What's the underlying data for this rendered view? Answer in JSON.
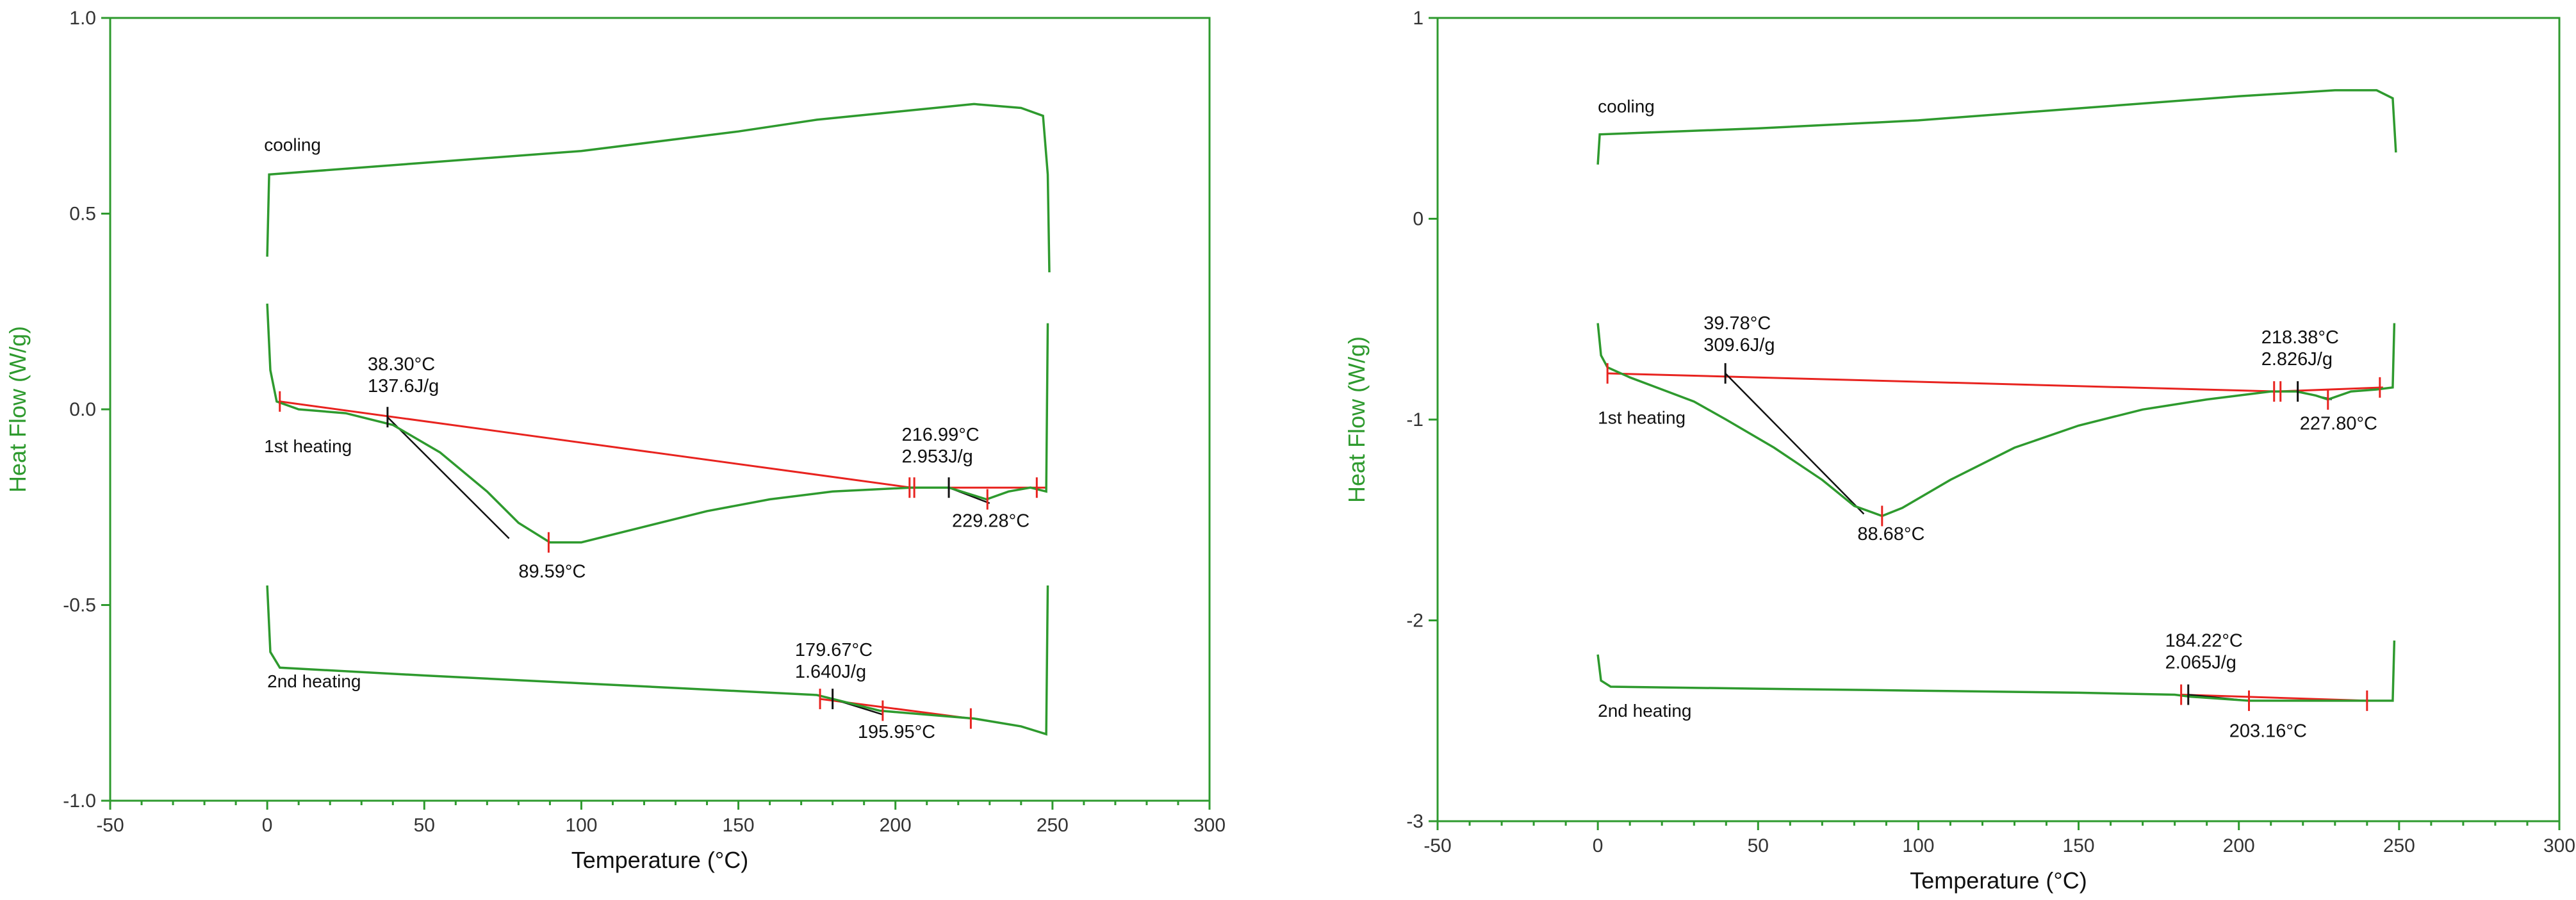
{
  "chart_data": [
    {
      "type": "line",
      "xlabel": "Temperature (°C)",
      "ylabel": "Heat Flow (W/g)",
      "xlim": [
        -50,
        300
      ],
      "ylim": [
        -1.0,
        1.0
      ],
      "x_ticks": [
        -50,
        0,
        50,
        100,
        150,
        200,
        250,
        300
      ],
      "x_tick_labels": [
        "-50",
        "0",
        "50",
        "100",
        "150",
        "200",
        "250",
        "300"
      ],
      "y_ticks": [
        -1.0,
        -0.5,
        0.0,
        0.5,
        1.0
      ],
      "y_tick_labels": [
        "-1.0",
        "-0.5",
        "0.0",
        "0.5",
        "1.0"
      ],
      "grid": false,
      "series": [
        {
          "name": "cooling",
          "label_at": [
            -1,
            0.66
          ],
          "points": [
            [
              0,
              0.39
            ],
            [
              0.6,
              0.6
            ],
            [
              50,
              0.63
            ],
            [
              100,
              0.66
            ],
            [
              150,
              0.71
            ],
            [
              175,
              0.74
            ],
            [
              200,
              0.76
            ],
            [
              225,
              0.78
            ],
            [
              240,
              0.77
            ],
            [
              247,
              0.75
            ],
            [
              248.5,
              0.6
            ],
            [
              249,
              0.35
            ]
          ]
        },
        {
          "name": "1st heating",
          "label_at": [
            -1,
            -0.11
          ],
          "points": [
            [
              0,
              0.27
            ],
            [
              1,
              0.1
            ],
            [
              3,
              0.02
            ],
            [
              10,
              0.0
            ],
            [
              25,
              -0.01
            ],
            [
              40,
              -0.04
            ],
            [
              55,
              -0.11
            ],
            [
              70,
              -0.21
            ],
            [
              80,
              -0.29
            ],
            [
              90,
              -0.34
            ],
            [
              100,
              -0.34
            ],
            [
              120,
              -0.3
            ],
            [
              140,
              -0.26
            ],
            [
              160,
              -0.23
            ],
            [
              180,
              -0.21
            ],
            [
              205,
              -0.2
            ],
            [
              217,
              -0.2
            ],
            [
              225,
              -0.22
            ],
            [
              229,
              -0.23
            ],
            [
              236,
              -0.21
            ],
            [
              243,
              -0.2
            ],
            [
              248,
              -0.21
            ],
            [
              248.5,
              0.22
            ]
          ]
        },
        {
          "name": "2nd heating",
          "label_at": [
            0,
            -0.71
          ],
          "points": [
            [
              0,
              -0.45
            ],
            [
              1,
              -0.62
            ],
            [
              4,
              -0.66
            ],
            [
              50,
              -0.68
            ],
            [
              100,
              -0.7
            ],
            [
              150,
              -0.72
            ],
            [
              175,
              -0.73
            ],
            [
              180,
              -0.74
            ],
            [
              195,
              -0.77
            ],
            [
              210,
              -0.78
            ],
            [
              225,
              -0.79
            ],
            [
              240,
              -0.81
            ],
            [
              248,
              -0.83
            ],
            [
              248.5,
              -0.45
            ]
          ]
        }
      ],
      "baselines": [
        {
          "from": [
            4,
            0.02
          ],
          "to": [
            205,
            -0.2
          ]
        },
        {
          "from": [
            205,
            -0.2
          ],
          "to": [
            248,
            -0.2
          ]
        },
        {
          "from": [
            176,
            -0.74
          ],
          "to": [
            224,
            -0.79
          ]
        }
      ],
      "tangents": [
        {
          "from": [
            38.3,
            -0.02
          ],
          "to": [
            77,
            -0.33
          ]
        },
        {
          "from": [
            217,
            -0.2
          ],
          "to": [
            230,
            -0.24
          ]
        },
        {
          "from": [
            180,
            -0.74
          ],
          "to": [
            196,
            -0.78
          ]
        }
      ],
      "markers": [
        {
          "x": 4,
          "y": 0.02,
          "color": "red"
        },
        {
          "x": 38.3,
          "y": -0.02,
          "color": "black"
        },
        {
          "x": 89.59,
          "y": -0.34,
          "color": "red"
        },
        {
          "x": 204.5,
          "y": -0.2,
          "color": "red"
        },
        {
          "x": 206,
          "y": -0.2,
          "color": "red"
        },
        {
          "x": 217,
          "y": -0.2,
          "color": "black"
        },
        {
          "x": 229.28,
          "y": -0.23,
          "color": "red"
        },
        {
          "x": 245,
          "y": -0.2,
          "color": "red"
        },
        {
          "x": 176,
          "y": -0.74,
          "color": "red"
        },
        {
          "x": 180,
          "y": -0.74,
          "color": "black"
        },
        {
          "x": 195.95,
          "y": -0.77,
          "color": "red"
        },
        {
          "x": 224,
          "y": -0.79,
          "color": "red"
        }
      ],
      "annotations": [
        {
          "lines": [
            "38.30°C",
            "137.6J/g"
          ],
          "at": [
            32,
            0.1
          ]
        },
        {
          "lines": [
            "89.59°C"
          ],
          "at": [
            80,
            -0.43
          ]
        },
        {
          "lines": [
            "216.99°C",
            "2.953J/g"
          ],
          "at": [
            202,
            -0.08
          ]
        },
        {
          "lines": [
            "229.28°C"
          ],
          "at": [
            218,
            -0.3
          ]
        },
        {
          "lines": [
            "179.67°C",
            "1.640J/g"
          ],
          "at": [
            168,
            -0.63
          ]
        },
        {
          "lines": [
            "195.95°C"
          ],
          "at": [
            188,
            -0.84
          ]
        }
      ]
    },
    {
      "type": "line",
      "xlabel": "Temperature (°C)",
      "ylabel": "Heat Flow (W/g)",
      "xlim": [
        -50,
        300
      ],
      "ylim": [
        -3,
        1
      ],
      "x_ticks": [
        -50,
        0,
        50,
        100,
        150,
        200,
        250,
        300
      ],
      "x_tick_labels": [
        "-50",
        "0",
        "50",
        "100",
        "150",
        "200",
        "250",
        "300"
      ],
      "y_ticks": [
        -3,
        -2,
        -1,
        0,
        1
      ],
      "y_tick_labels": [
        "-3",
        "-2",
        "-1",
        "0",
        "1"
      ],
      "grid": false,
      "series": [
        {
          "name": "cooling",
          "label_at": [
            0,
            0.53
          ],
          "points": [
            [
              0,
              0.27
            ],
            [
              0.6,
              0.42
            ],
            [
              50,
              0.45
            ],
            [
              100,
              0.49
            ],
            [
              150,
              0.55
            ],
            [
              200,
              0.61
            ],
            [
              230,
              0.64
            ],
            [
              243,
              0.64
            ],
            [
              248,
              0.6
            ],
            [
              249,
              0.33
            ]
          ]
        },
        {
          "name": "1st heating",
          "label_at": [
            0,
            -1.02
          ],
          "points": [
            [
              0,
              -0.52
            ],
            [
              1,
              -0.68
            ],
            [
              3,
              -0.74
            ],
            [
              10,
              -0.79
            ],
            [
              20,
              -0.85
            ],
            [
              30,
              -0.91
            ],
            [
              40,
              -1.0
            ],
            [
              55,
              -1.14
            ],
            [
              70,
              -1.3
            ],
            [
              80,
              -1.43
            ],
            [
              88.68,
              -1.48
            ],
            [
              95,
              -1.44
            ],
            [
              110,
              -1.3
            ],
            [
              130,
              -1.14
            ],
            [
              150,
              -1.03
            ],
            [
              170,
              -0.95
            ],
            [
              190,
              -0.9
            ],
            [
              210,
              -0.86
            ],
            [
              218,
              -0.86
            ],
            [
              224,
              -0.88
            ],
            [
              227.8,
              -0.9
            ],
            [
              235,
              -0.86
            ],
            [
              243,
              -0.85
            ],
            [
              248,
              -0.84
            ],
            [
              248.5,
              -0.52
            ]
          ]
        },
        {
          "name": "2nd heating",
          "label_at": [
            0,
            -2.48
          ],
          "points": [
            [
              0,
              -2.17
            ],
            [
              1,
              -2.3
            ],
            [
              4,
              -2.33
            ],
            [
              50,
              -2.34
            ],
            [
              100,
              -2.35
            ],
            [
              150,
              -2.36
            ],
            [
              180,
              -2.37
            ],
            [
              185,
              -2.38
            ],
            [
              203.16,
              -2.4
            ],
            [
              220,
              -2.4
            ],
            [
              240,
              -2.4
            ],
            [
              248,
              -2.4
            ],
            [
              248.5,
              -2.1
            ]
          ]
        }
      ],
      "baselines": [
        {
          "from": [
            3,
            -0.77
          ],
          "to": [
            212,
            -0.86
          ]
        },
        {
          "from": [
            212,
            -0.86
          ],
          "to": [
            245,
            -0.84
          ]
        },
        {
          "from": [
            182,
            -2.37
          ],
          "to": [
            240,
            -2.4
          ]
        }
      ],
      "tangents": [
        {
          "from": [
            39.78,
            -0.77
          ],
          "to": [
            83,
            -1.47
          ]
        },
        {
          "from": [
            218.38,
            -0.86
          ],
          "to": [
            229,
            -0.9
          ]
        },
        {
          "from": [
            184.22,
            -2.37
          ],
          "to": [
            203,
            -2.4
          ]
        }
      ],
      "markers": [
        {
          "x": 3,
          "y": -0.77,
          "color": "red"
        },
        {
          "x": 39.78,
          "y": -0.77,
          "color": "black"
        },
        {
          "x": 88.68,
          "y": -1.48,
          "color": "red"
        },
        {
          "x": 211,
          "y": -0.86,
          "color": "red"
        },
        {
          "x": 213,
          "y": -0.86,
          "color": "red"
        },
        {
          "x": 218.38,
          "y": -0.86,
          "color": "black"
        },
        {
          "x": 227.8,
          "y": -0.9,
          "color": "red"
        },
        {
          "x": 244,
          "y": -0.84,
          "color": "red"
        },
        {
          "x": 182,
          "y": -2.37,
          "color": "red"
        },
        {
          "x": 184.22,
          "y": -2.37,
          "color": "black"
        },
        {
          "x": 203.16,
          "y": -2.4,
          "color": "red"
        },
        {
          "x": 240,
          "y": -2.4,
          "color": "red"
        }
      ],
      "annotations": [
        {
          "lines": [
            "39.78°C",
            "309.6J/g"
          ],
          "at": [
            33,
            -0.55
          ]
        },
        {
          "lines": [
            "88.68°C"
          ],
          "at": [
            81,
            -1.6
          ]
        },
        {
          "lines": [
            "218.38°C",
            "2.826J/g"
          ],
          "at": [
            207,
            -0.62
          ]
        },
        {
          "lines": [
            "227.80°C"
          ],
          "at": [
            219,
            -1.05
          ]
        },
        {
          "lines": [
            "184.22°C",
            "2.065J/g"
          ],
          "at": [
            177,
            -2.13
          ]
        },
        {
          "lines": [
            "203.16°C"
          ],
          "at": [
            197,
            -2.58
          ]
        }
      ]
    }
  ]
}
